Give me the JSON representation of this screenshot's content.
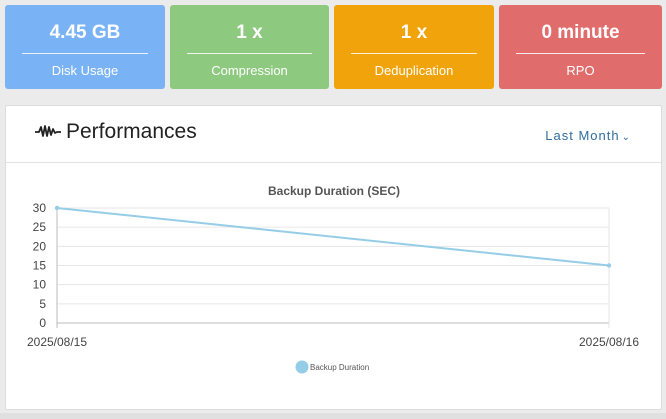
{
  "stats": [
    {
      "value": "4.45 GB",
      "label": "Disk Usage"
    },
    {
      "value": "1 x",
      "label": "Compression"
    },
    {
      "value": "1 x",
      "label": "Deduplication"
    },
    {
      "value": "0 minute",
      "label": "RPO"
    }
  ],
  "colors": {
    "disk": "#7ab3f5",
    "compression": "#8dc97f",
    "dedup": "#f0a30a",
    "rpo": "#e06c6c",
    "series": "#95cde6"
  },
  "panel": {
    "icon": "pulse-icon",
    "title": "Performances",
    "range_label": "Last Month"
  },
  "chart_data": {
    "type": "line",
    "title": "Backup Duration (SEC)",
    "x": [
      "2025/08/15",
      "2025/08/16"
    ],
    "series": [
      {
        "name": "Backup Duration",
        "values": [
          30,
          15
        ]
      }
    ],
    "yticks": [
      0,
      5,
      10,
      15,
      20,
      25,
      30
    ],
    "ylim": [
      0,
      30
    ],
    "grid": true,
    "legend": "bottom"
  }
}
